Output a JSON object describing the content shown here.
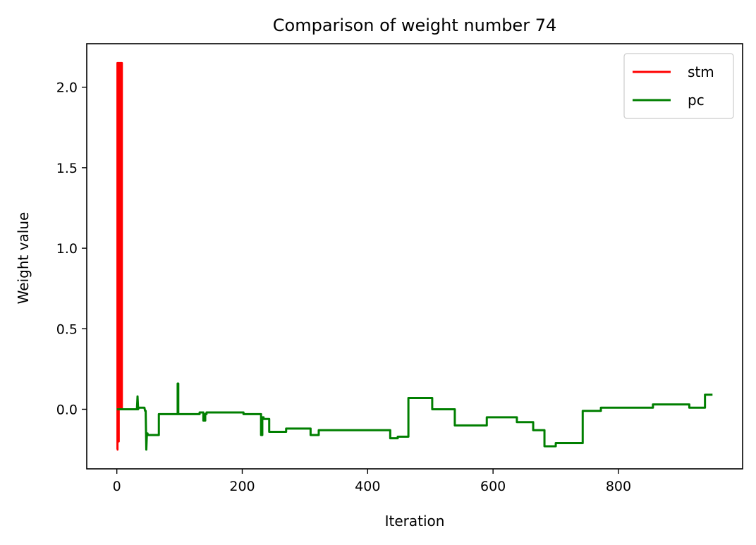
{
  "chart_data": {
    "type": "line",
    "title": "Comparison of weight number 74",
    "xlabel": "Iteration",
    "ylabel": "Weight value",
    "xlim": [
      -48,
      998
    ],
    "ylim": [
      -0.37,
      2.27
    ],
    "xticks": [
      0,
      200,
      400,
      600,
      800
    ],
    "xtick_labels": [
      "0",
      "200",
      "400",
      "600",
      "800"
    ],
    "yticks": [
      0.0,
      0.5,
      1.0,
      1.5,
      2.0
    ],
    "ytick_labels": [
      "0.0",
      "0.5",
      "1.0",
      "1.5",
      "2.0"
    ],
    "grid": false,
    "legend_position": "upper right",
    "series": [
      {
        "name": "stm",
        "color": "#ff0000",
        "x": [
          0,
          1,
          1,
          2,
          2,
          3,
          3,
          4,
          4,
          5,
          5,
          6,
          6,
          7,
          7,
          8,
          8,
          9,
          9,
          10
        ],
        "y": [
          -0.25,
          -0.25,
          2.15,
          2.15,
          -0.2,
          -0.2,
          2.15,
          2.15,
          0.0,
          0.0,
          2.15,
          2.15,
          0.0,
          0.0,
          2.15,
          2.15,
          0.0,
          0.0,
          0.0,
          0.0
        ]
      },
      {
        "name": "pc",
        "color": "#007f00",
        "x": [
          0,
          10,
          10,
          32,
          33,
          34,
          35,
          44,
          45,
          46,
          47,
          48,
          49,
          49,
          67,
          67,
          97,
          97,
          98,
          98,
          132,
          132,
          138,
          138,
          141,
          141,
          143,
          143,
          202,
          202,
          230,
          230,
          232,
          232,
          234,
          234,
          243,
          243,
          270,
          270,
          309,
          309,
          322,
          322,
          436,
          436,
          448,
          448,
          465,
          465,
          503,
          503,
          539,
          539,
          590,
          590,
          638,
          638,
          664,
          664,
          682,
          682,
          700,
          700,
          743,
          743,
          772,
          772,
          855,
          855,
          913,
          913,
          938,
          938,
          950
        ],
        "y": [
          0.0,
          0.0,
          0.0,
          0.0,
          0.08,
          0.0,
          0.01,
          0.01,
          -0.01,
          -0.01,
          -0.25,
          -0.15,
          -0.15,
          -0.16,
          -0.16,
          -0.03,
          -0.03,
          0.16,
          0.16,
          -0.03,
          -0.03,
          -0.02,
          -0.02,
          -0.07,
          -0.07,
          -0.03,
          -0.03,
          -0.02,
          -0.02,
          -0.03,
          -0.03,
          -0.16,
          -0.16,
          -0.05,
          -0.05,
          -0.06,
          -0.06,
          -0.14,
          -0.14,
          -0.12,
          -0.12,
          -0.16,
          -0.16,
          -0.13,
          -0.13,
          -0.18,
          -0.18,
          -0.17,
          -0.17,
          0.07,
          0.07,
          0.0,
          0.0,
          -0.1,
          -0.1,
          -0.05,
          -0.05,
          -0.08,
          -0.08,
          -0.13,
          -0.13,
          -0.23,
          -0.23,
          -0.21,
          -0.21,
          -0.01,
          -0.01,
          0.01,
          0.01,
          0.03,
          0.03,
          0.01,
          0.01,
          0.09,
          0.09
        ]
      }
    ]
  }
}
